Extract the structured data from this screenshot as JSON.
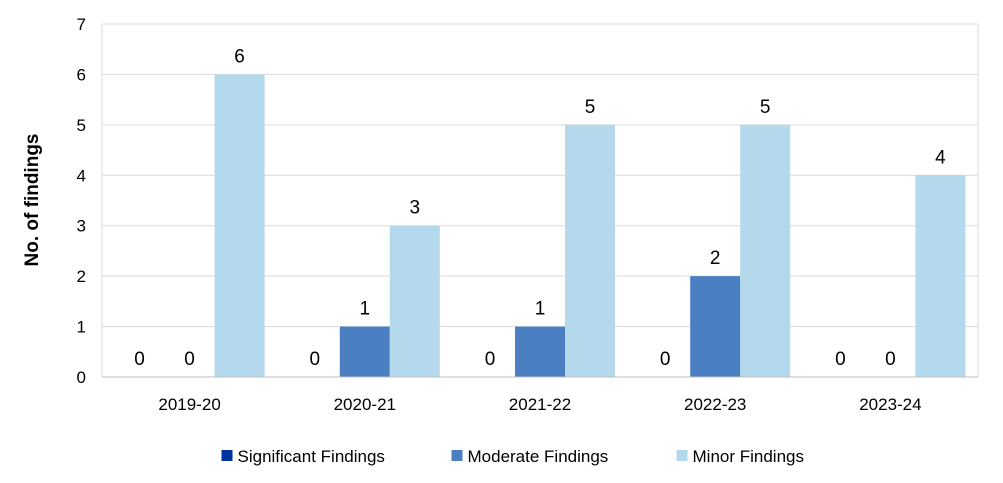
{
  "chart_data": {
    "type": "bar",
    "title": "",
    "xlabel": "",
    "ylabel": "No. of findings",
    "ylim": [
      0,
      7
    ],
    "yticks": [
      0,
      1,
      2,
      3,
      4,
      5,
      6,
      7
    ],
    "grid": true,
    "legend_position": "bottom",
    "categories": [
      "2019-20",
      "2020-21",
      "2021-22",
      "2022-23",
      "2023-24"
    ],
    "series": [
      {
        "name": "Significant Findings",
        "color": "#0033a0",
        "values": [
          0,
          0,
          0,
          0,
          0
        ]
      },
      {
        "name": "Moderate Findings",
        "color": "#4a7fc1",
        "values": [
          0,
          1,
          1,
          2,
          0
        ]
      },
      {
        "name": "Minor Findings",
        "color": "#b4d9ec",
        "values": [
          6,
          3,
          5,
          5,
          4
        ]
      }
    ]
  }
}
